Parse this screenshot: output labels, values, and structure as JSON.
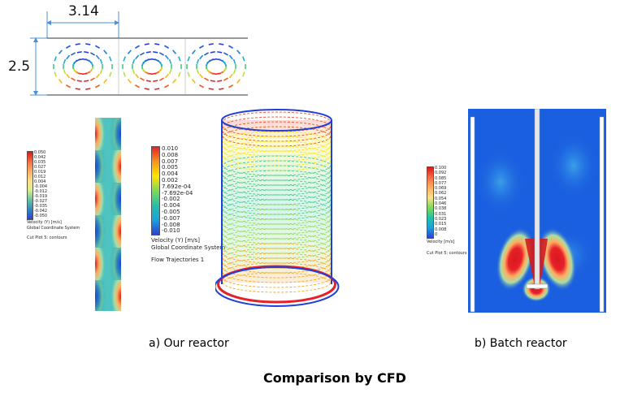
{
  "dimensions": {
    "width_label": "3.14",
    "height_label": "2.5"
  },
  "legend_left": {
    "ticks": [
      "0.050",
      "0.042",
      "0.035",
      "0.027",
      "0.019",
      "0.012",
      "0.004",
      "-0.004",
      "-0.012",
      "-0.019",
      "-0.027",
      "-0.035",
      "-0.042",
      "-0.050"
    ],
    "unit_label": "Velocity (Y) [m/s]",
    "coord_label": "Global Coordinate System",
    "plot_label": "Cut Plot 5: contours"
  },
  "legend_middle": {
    "ticks": [
      "0.010",
      "0.008",
      "0.007",
      "0.005",
      "0.004",
      "0.002",
      "7.692e-04",
      "-7.692e-04",
      "-0.002",
      "-0.004",
      "-0.005",
      "-0.007",
      "-0.008",
      "-0.010"
    ],
    "unit_label": "Velocity (Y) [m/s]",
    "coord_label": "Global Coordinate System",
    "plot_label": "Flow Trajectories 1"
  },
  "legend_right": {
    "ticks": [
      "0.100",
      "0.092",
      "0.085",
      "0.077",
      "0.069",
      "0.062",
      "0.054",
      "0.046",
      "0.038",
      "0.031",
      "0.023",
      "0.015",
      "0.008",
      "0"
    ],
    "unit_label": "Velocity [m/s]",
    "plot_label": "Cut Plot 5: contours"
  },
  "captions": {
    "our_reactor": "a) Our reactor",
    "batch_reactor": "b) Batch reactor"
  },
  "title": "Comparison by CFD",
  "colors": {
    "jet_red": "#e8202a",
    "jet_blue": "#1f3fd6",
    "batch_bg": "#1a5fe0",
    "dim_line": "#4a90d9"
  }
}
